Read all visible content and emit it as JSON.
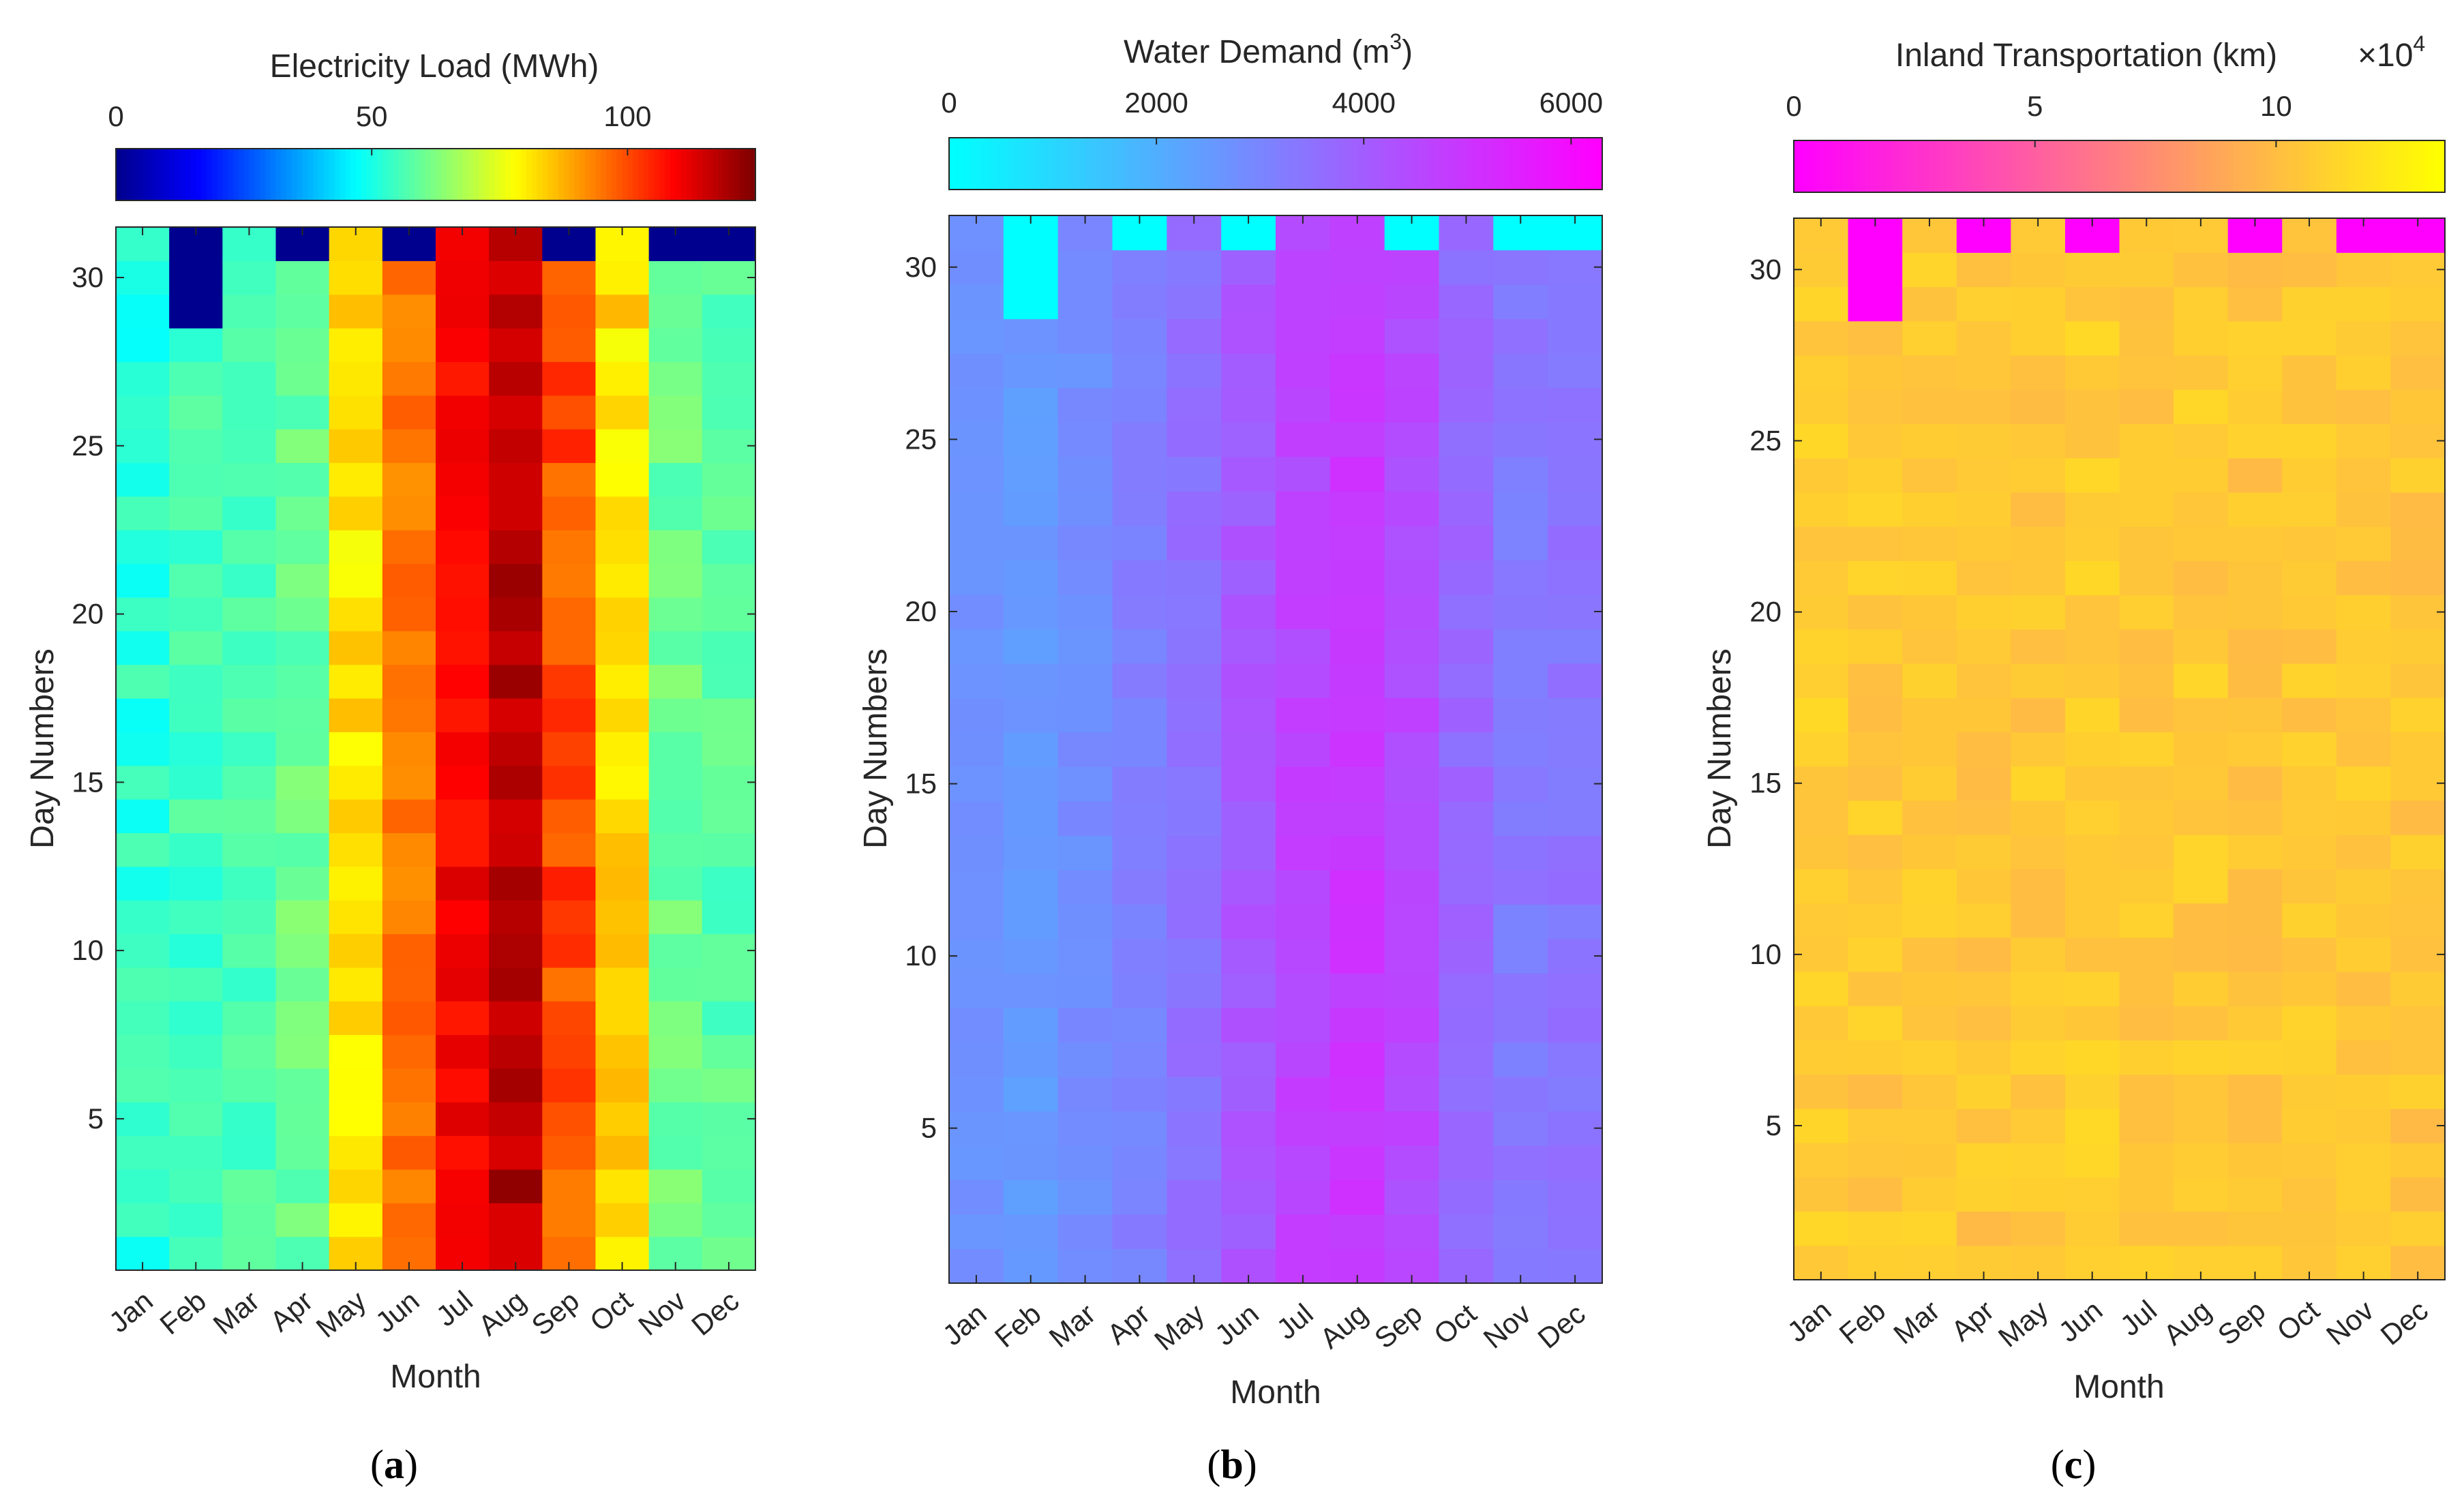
{
  "chart_data": [
    {
      "type": "heatmap",
      "panel_label": "(a)",
      "panel_letter": "a",
      "colorbar_title": "Electricity Load (MWh)",
      "colorbar_ticks": [
        "0",
        "50",
        "100"
      ],
      "colorbar_tick_values": [
        0,
        50,
        100
      ],
      "colorbar_range": [
        0,
        125
      ],
      "colormap": "jet",
      "xlabel": "Month",
      "ylabel": "Day Numbers",
      "months": [
        "Jan",
        "Feb",
        "Mar",
        "Apr",
        "May",
        "Jun",
        "Jul",
        "Aug",
        "Sep",
        "Oct",
        "Nov",
        "Dec"
      ],
      "y_ticks": [
        "5",
        "10",
        "15",
        "20",
        "25",
        "30"
      ],
      "y_tick_values": [
        5,
        10,
        15,
        20,
        25,
        30
      ],
      "y_range": [
        0.5,
        31.5
      ],
      "monthly_mean": [
        52,
        55,
        56,
        60,
        82,
        95,
        110,
        118,
        100,
        82,
        60,
        58
      ],
      "monthly_spread": [
        5,
        4,
        3,
        4,
        5,
        4,
        4,
        5,
        6,
        5,
        4,
        4
      ],
      "missing_days": {
        "Feb": [
          29,
          30,
          31
        ],
        "Apr": [
          31
        ],
        "Jun": [
          31
        ],
        "Sep": [
          31
        ],
        "Nov": [
          31
        ],
        "Dec": [
          31
        ]
      }
    },
    {
      "type": "heatmap",
      "panel_label": "(b)",
      "panel_letter": "b",
      "colorbar_title": "Water Demand (m",
      "colorbar_title_sup": "3",
      "colorbar_title_end": ")",
      "colorbar_ticks": [
        "0",
        "2000",
        "4000",
        "6000"
      ],
      "colorbar_tick_values": [
        0,
        2000,
        4000,
        6000
      ],
      "colorbar_range": [
        0,
        6300
      ],
      "colormap": "cool",
      "xlabel": "Month",
      "ylabel": "Day Numbers",
      "months": [
        "Jan",
        "Feb",
        "Mar",
        "Apr",
        "May",
        "Jun",
        "Jul",
        "Aug",
        "Sep",
        "Oct",
        "Nov",
        "Dec"
      ],
      "y_ticks": [
        "5",
        "10",
        "15",
        "20",
        "25",
        "30"
      ],
      "y_tick_values": [
        5,
        10,
        15,
        20,
        25,
        30
      ],
      "y_range": [
        0.5,
        31.5
      ],
      "monthly_mean": [
        2700,
        2500,
        2800,
        3100,
        3500,
        4100,
        4600,
        4900,
        4500,
        3700,
        3300,
        3400
      ],
      "monthly_spread": [
        150,
        200,
        200,
        200,
        250,
        250,
        300,
        250,
        250,
        250,
        250,
        250
      ],
      "missing_days": {
        "Feb": [
          29,
          30,
          31
        ],
        "Apr": [
          31
        ],
        "Jun": [
          31
        ],
        "Sep": [
          31
        ],
        "Nov": [
          31
        ],
        "Dec": [
          31
        ]
      }
    },
    {
      "type": "heatmap",
      "panel_label": "(c)",
      "panel_letter": "c",
      "colorbar_title": "Inland Transportation (km)",
      "colorbar_exponent_base": "×10",
      "colorbar_exponent": "4",
      "colorbar_ticks": [
        "0",
        "5",
        "10"
      ],
      "colorbar_tick_values": [
        0,
        5,
        10
      ],
      "colorbar_range": [
        0,
        13.5
      ],
      "colormap": "spring",
      "xlabel": "Month",
      "ylabel": "Day Numbers",
      "months": [
        "Jan",
        "Feb",
        "Mar",
        "Apr",
        "May",
        "Jun",
        "Jul",
        "Aug",
        "Sep",
        "Oct",
        "Nov",
        "Dec"
      ],
      "y_ticks": [
        "5",
        "10",
        "15",
        "20",
        "25",
        "30"
      ],
      "y_tick_values": [
        5,
        10,
        15,
        20,
        25,
        30
      ],
      "y_range": [
        0.5,
        31.5
      ],
      "monthly_mean": [
        10.8,
        10.6,
        10.7,
        10.5,
        10.6,
        10.8,
        10.6,
        10.7,
        10.5,
        10.6,
        10.6,
        10.5
      ],
      "monthly_spread": [
        0.7,
        0.7,
        0.6,
        0.7,
        0.7,
        0.7,
        0.6,
        0.7,
        0.7,
        0.6,
        0.6,
        0.7
      ],
      "missing_days": {
        "Feb": [
          29,
          30,
          31
        ],
        "Apr": [
          31
        ],
        "Jun": [
          31
        ],
        "Sep": [
          31
        ],
        "Nov": [
          31
        ],
        "Dec": [
          31
        ]
      }
    }
  ]
}
